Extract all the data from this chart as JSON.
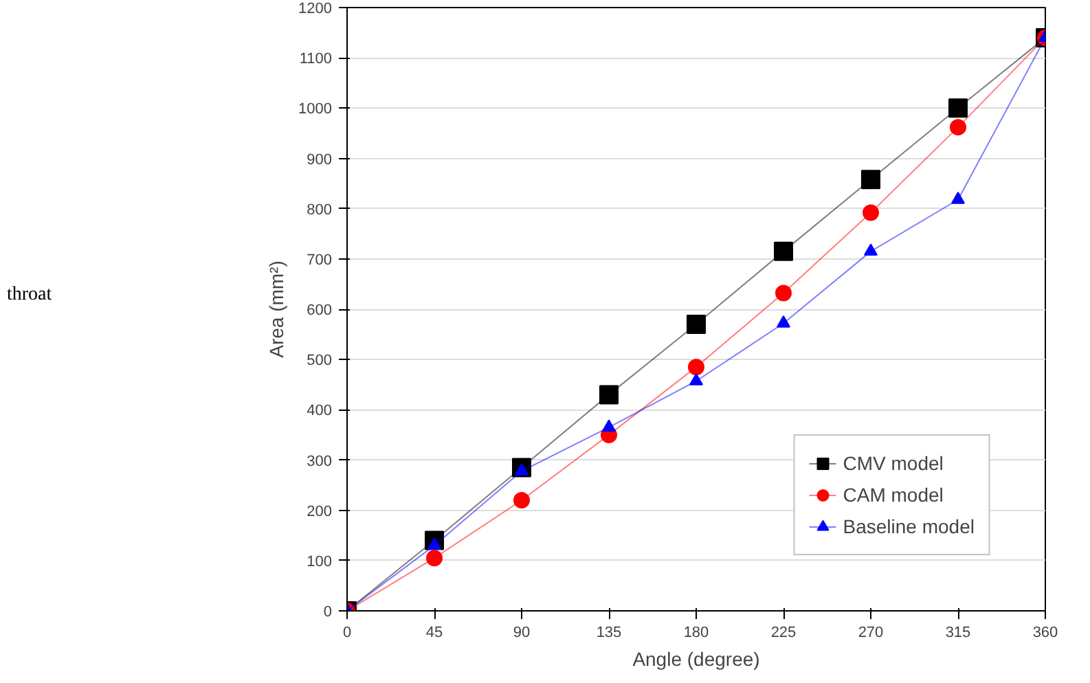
{
  "chart_data": {
    "type": "line",
    "xlabel": "Angle (degree)",
    "ylabel": "Area (mm²)",
    "x": [
      0,
      45,
      90,
      135,
      180,
      225,
      270,
      315,
      360
    ],
    "series": [
      {
        "name": "CMV model",
        "color": "#000000",
        "marker": "square",
        "values": [
          0,
          140,
          285,
          430,
          570,
          715,
          858,
          1000,
          1140
        ]
      },
      {
        "name": "CAM model",
        "color": "#ff0000",
        "marker": "circle",
        "values": [
          0,
          105,
          220,
          350,
          485,
          632,
          792,
          962,
          1140
        ]
      },
      {
        "name": "Baseline model",
        "color": "#0000ff",
        "marker": "triangle",
        "values": [
          0,
          130,
          278,
          365,
          457,
          572,
          715,
          818,
          1140
        ]
      }
    ],
    "xlim": [
      0,
      360
    ],
    "ylim": [
      0,
      1200
    ],
    "xticks": [
      0,
      45,
      90,
      135,
      180,
      225,
      270,
      315,
      360
    ],
    "yticks": [
      0,
      100,
      200,
      300,
      400,
      500,
      600,
      700,
      800,
      900,
      1000,
      1100,
      1200
    ],
    "grid": "y",
    "legend": "bottom right",
    "line_style": "solid",
    "annotations": [
      "throat"
    ]
  }
}
